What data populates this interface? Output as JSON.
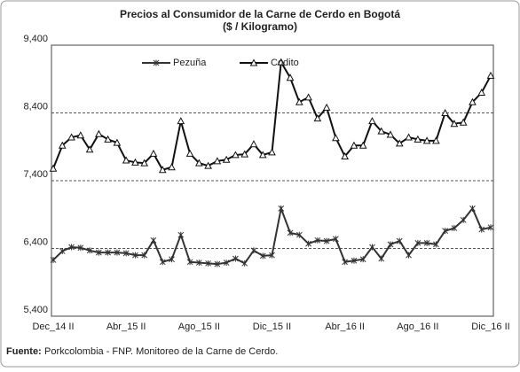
{
  "chart_data": {
    "type": "line",
    "title": "Precios al Consumidor de la Carne de Cerdo en Bogotá",
    "subtitle": "($ / Kilogramo)",
    "categories": [
      "Dec_14 II",
      null,
      null,
      null,
      null,
      null,
      null,
      null,
      "Abr_15 II",
      null,
      null,
      null,
      null,
      null,
      null,
      null,
      "Ago_15 II",
      null,
      null,
      null,
      null,
      null,
      null,
      null,
      "Dic_15 II",
      null,
      null,
      null,
      null,
      null,
      null,
      null,
      "Abr_16 II",
      null,
      null,
      null,
      null,
      null,
      null,
      null,
      "Ago_16 II",
      null,
      null,
      null,
      null,
      null,
      null,
      null,
      "Dic_16 II"
    ],
    "series": [
      {
        "name": "Pezuña",
        "color": "#333333",
        "marker": "asterisk",
        "values": [
          6230,
          6360,
          6420,
          6410,
          6370,
          6340,
          6340,
          6340,
          6330,
          6300,
          6300,
          6520,
          6200,
          6240,
          6600,
          6200,
          6190,
          6180,
          6170,
          6190,
          6250,
          6180,
          6370,
          6290,
          6300,
          6990,
          6630,
          6600,
          6470,
          6520,
          6510,
          6540,
          6200,
          6220,
          6240,
          6420,
          6250,
          6460,
          6510,
          6300,
          6480,
          6480,
          6460,
          6660,
          6700,
          6820,
          6990,
          6680,
          6710
        ]
      },
      {
        "name": "Codito",
        "color": "#111111",
        "marker": "triangle",
        "values": [
          7580,
          7920,
          8040,
          8070,
          7860,
          8090,
          8010,
          7960,
          7700,
          7670,
          7660,
          7800,
          7560,
          7600,
          8280,
          7800,
          7660,
          7620,
          7690,
          7710,
          7780,
          7790,
          7940,
          7780,
          7820,
          9150,
          8920,
          8560,
          8630,
          8320,
          8480,
          8030,
          7760,
          7920,
          7920,
          8280,
          8130,
          8080,
          7950,
          8040,
          8010,
          7990,
          7990,
          8400,
          8240,
          8260,
          8560,
          8700,
          8950
        ]
      }
    ],
    "ylim": [
      5400,
      9400
    ],
    "yticks": [
      {
        "value": 5400,
        "label": "5,400"
      },
      {
        "value": 6400,
        "label": "6,400"
      },
      {
        "value": 7400,
        "label": "7,400"
      },
      {
        "value": 8400,
        "label": "8,400"
      },
      {
        "value": 9400,
        "label": "9,400"
      }
    ],
    "grid": true,
    "legend": "top",
    "source_label": "Fuente:",
    "source_text": "Porkcolombia - FNP.  Monitoreo de la Carne de Cerdo."
  }
}
